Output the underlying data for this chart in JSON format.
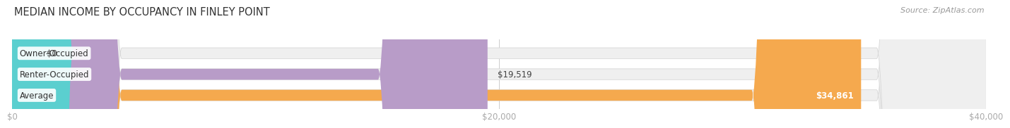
{
  "title": "MEDIAN INCOME BY OCCUPANCY IN FINLEY POINT",
  "source": "Source: ZipAtlas.com",
  "categories": [
    "Average",
    "Renter-Occupied",
    "Owner-Occupied"
  ],
  "values": [
    34861,
    19519,
    0
  ],
  "labels": [
    "$34,861",
    "$19,519",
    "$0"
  ],
  "bar_colors": [
    "#f5a94e",
    "#b89cc8",
    "#5bcfcf"
  ],
  "bar_bg_color": "#efefef",
  "label_colors": [
    "#ffffff",
    "#555555",
    "#555555"
  ],
  "xlim": [
    0,
    40000
  ],
  "xticks": [
    0,
    20000,
    40000
  ],
  "xtick_labels": [
    "$0",
    "$20,000",
    "$40,000"
  ],
  "bar_height": 0.52,
  "fig_bg_color": "#ffffff",
  "title_fontsize": 10.5,
  "source_fontsize": 8,
  "label_fontsize": 8.5,
  "tick_fontsize": 8.5,
  "cat_fontsize": 8.5
}
